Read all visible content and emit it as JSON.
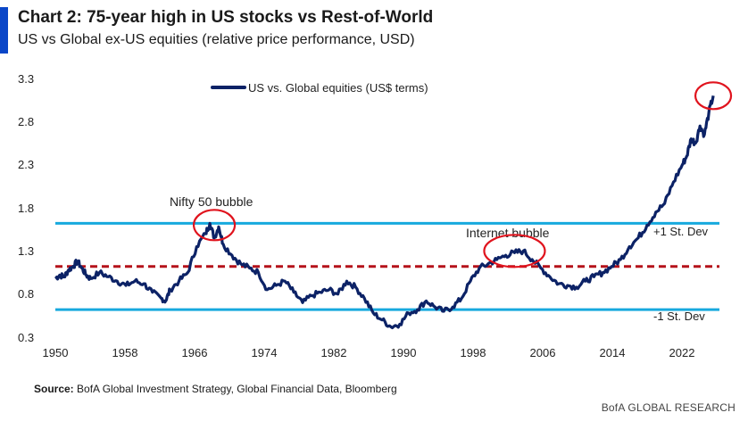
{
  "header": {
    "title": "Chart 2: 75-year high in US stocks vs Rest-of-World",
    "subtitle": "US vs Global ex-US equities (relative price performance, USD)"
  },
  "footer": {
    "source_label": "Source:",
    "source_text": "BofA Global Investment Strategy, Global Financial Data, Bloomberg",
    "brand": "BofA GLOBAL RESEARCH"
  },
  "colors": {
    "series": "#0c2266",
    "std_lines": "#17a9de",
    "mean_line": "#b5121b",
    "annotation": "#e0131d",
    "accent": "#0a46c8"
  },
  "chart_data": {
    "type": "line",
    "title": "",
    "xlabel": "",
    "ylabel": "",
    "xlim": [
      1950,
      2025
    ],
    "ylim": [
      0.3,
      3.3
    ],
    "x_ticks": [
      "1950",
      "1958",
      "1966",
      "1974",
      "1982",
      "1990",
      "1998",
      "2006",
      "2014",
      "2022"
    ],
    "y_ticks": [
      "3.3",
      "2.8",
      "2.3",
      "1.8",
      "1.3",
      "0.8",
      "0.3"
    ],
    "legend": {
      "label": "US vs. Global equities (US$ terms)",
      "position": "top"
    },
    "grid": false,
    "series": [
      {
        "name": "US vs. Global equities (US$ terms)",
        "x": [
          1950,
          1950.5,
          1951,
          1951.5,
          1952,
          1952.5,
          1953,
          1953.5,
          1954,
          1955,
          1956,
          1957,
          1958,
          1959,
          1960,
          1961,
          1962,
          1962.5,
          1963,
          1964,
          1965,
          1966,
          1967,
          1967.5,
          1968,
          1968.5,
          1969,
          1970,
          1971,
          1972,
          1973,
          1974,
          1975,
          1976,
          1977,
          1978,
          1979,
          1980,
          1981,
          1982,
          1983,
          1984,
          1985,
          1986,
          1987,
          1988,
          1989,
          1990,
          1991,
          1992,
          1993,
          1994,
          1995,
          1996,
          1997,
          1998,
          1999,
          2000,
          2001,
          2002,
          2003,
          2004,
          2005,
          2006,
          2007,
          2008,
          2009,
          2010,
          2011,
          2012,
          2013,
          2014,
          2015,
          2016,
          2017,
          2018,
          2019,
          2020,
          2021,
          2021.5,
          2022,
          2022.5,
          2023,
          2023.5,
          2024,
          2024.5
        ],
        "y": [
          0.98,
          1.02,
          1.0,
          1.08,
          1.12,
          1.18,
          1.1,
          1.02,
          0.98,
          1.05,
          1.0,
          0.95,
          0.9,
          0.95,
          0.92,
          0.82,
          0.75,
          0.72,
          0.85,
          0.95,
          1.05,
          1.35,
          1.5,
          1.62,
          1.45,
          1.58,
          1.38,
          1.25,
          1.15,
          1.1,
          1.05,
          0.85,
          0.9,
          0.95,
          0.82,
          0.7,
          0.78,
          0.82,
          0.85,
          0.8,
          0.95,
          0.88,
          0.75,
          0.58,
          0.5,
          0.42,
          0.45,
          0.58,
          0.62,
          0.72,
          0.65,
          0.6,
          0.65,
          0.75,
          0.95,
          1.1,
          1.15,
          1.2,
          1.25,
          1.28,
          1.3,
          1.2,
          1.1,
          1.0,
          0.92,
          0.9,
          0.88,
          0.95,
          1.0,
          1.05,
          1.12,
          1.2,
          1.35,
          1.45,
          1.6,
          1.75,
          1.85,
          2.1,
          2.3,
          2.4,
          2.6,
          2.55,
          2.75,
          2.65,
          2.9,
          3.1
        ]
      }
    ],
    "reference_lines": [
      {
        "name": "+1 St. Dev",
        "y": 1.62,
        "style": "solid"
      },
      {
        "name": "mean",
        "y": 1.12,
        "style": "dashed"
      },
      {
        "name": "-1 St. Dev",
        "y": 0.62,
        "style": "solid"
      }
    ],
    "annotations": [
      {
        "text": "Nifty 50 bubble",
        "x": 1968,
        "y": 1.6
      },
      {
        "text": "Internet bubble",
        "x": 2002,
        "y": 1.3
      },
      {
        "text": "",
        "x": 2024.5,
        "y": 3.1
      }
    ]
  }
}
